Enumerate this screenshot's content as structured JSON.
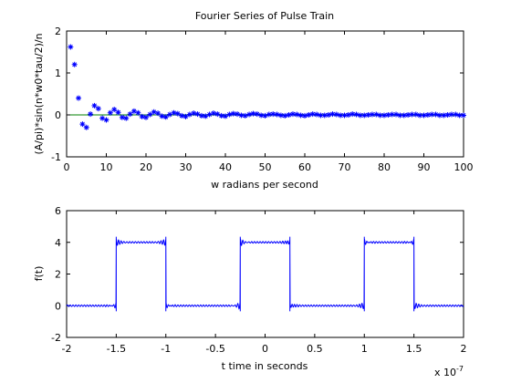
{
  "figure": {
    "background": "#ffffff",
    "axes_color": "#000000",
    "series_color": "#0000ff",
    "zero_line_color": "#008000"
  },
  "chart_data": [
    {
      "type": "scatter",
      "title": "Fourier Series of Pulse Train",
      "xlabel": "w radians per second",
      "ylabel": "(A/pi)*sin(n*w0*tau/2)/n",
      "xlim": [
        0,
        100
      ],
      "ylim": [
        -1,
        2
      ],
      "xticks": [
        "0",
        "10",
        "20",
        "30",
        "40",
        "50",
        "60",
        "70",
        "80",
        "90",
        "100"
      ],
      "yticks": [
        "-1",
        "0",
        "1",
        "2"
      ],
      "grid": false,
      "marker": "asterisk",
      "series": [
        {
          "x": [
            1,
            2,
            3,
            4,
            5,
            6,
            7,
            8,
            9,
            10,
            11,
            12,
            13,
            14,
            15,
            16,
            17,
            18,
            19,
            20,
            21,
            22,
            23,
            24,
            25,
            26,
            27,
            28,
            29,
            30,
            31,
            32,
            33,
            34,
            35,
            36,
            37,
            38,
            39,
            40,
            41,
            42,
            43,
            44,
            45,
            46,
            47,
            48,
            49,
            50,
            51,
            52,
            53,
            54,
            55,
            56,
            57,
            58,
            59,
            60,
            61,
            62,
            63,
            64,
            65,
            66,
            67,
            68,
            69,
            70,
            71,
            72,
            73,
            74,
            75,
            76,
            77,
            78,
            79,
            80,
            81,
            82,
            83,
            84,
            85,
            86,
            87,
            88,
            89,
            90,
            91,
            92,
            93,
            94,
            95,
            96,
            97,
            98,
            99,
            100
          ],
          "y": [
            1.62,
            1.2,
            0.4,
            -0.22,
            -0.3,
            0.02,
            0.22,
            0.15,
            -0.08,
            -0.12,
            0.05,
            0.13,
            0.06,
            -0.06,
            -0.08,
            0.02,
            0.09,
            0.05,
            -0.04,
            -0.06,
            0.01,
            0.07,
            0.04,
            -0.03,
            -0.05,
            0.01,
            0.05,
            0.03,
            -0.02,
            -0.04,
            0.01,
            0.04,
            0.02,
            -0.02,
            -0.03,
            0.01,
            0.04,
            0.02,
            -0.02,
            -0.03,
            0.01,
            0.03,
            0.02,
            -0.01,
            -0.02,
            0.01,
            0.03,
            0.02,
            -0.01,
            -0.02,
            0.01,
            0.02,
            0.01,
            -0.01,
            -0.02,
            0.0,
            0.02,
            0.01,
            -0.01,
            -0.02,
            0.0,
            0.02,
            0.01,
            -0.01,
            -0.01,
            0.0,
            0.02,
            0.01,
            -0.01,
            -0.01,
            0.0,
            0.02,
            0.01,
            -0.01,
            -0.01,
            0.0,
            0.01,
            0.01,
            -0.01,
            -0.01,
            0.0,
            0.01,
            0.01,
            -0.01,
            -0.01,
            0.0,
            0.01,
            0.01,
            -0.01,
            -0.01,
            0.0,
            0.01,
            0.01,
            -0.01,
            -0.01,
            0.0,
            0.01,
            0.01,
            -0.01,
            -0.01
          ]
        }
      ],
      "reference_line_y": 0
    },
    {
      "type": "line",
      "title": "",
      "xlabel": "t time in seconds",
      "ylabel": "f(t)",
      "x_multiplier": "x 10",
      "x_multiplier_exponent": "-7",
      "xlim": [
        -2,
        2
      ],
      "ylim": [
        -2,
        6
      ],
      "xticks": [
        "-2",
        "-1.5",
        "-1",
        "-0.5",
        "0",
        "0.5",
        "1",
        "1.5",
        "2"
      ],
      "yticks": [
        "-2",
        "0",
        "2",
        "4",
        "6"
      ],
      "grid": false,
      "series": [
        {
          "shape": "pulse train with ripple at edges",
          "low": 0,
          "high": 4,
          "pulses": [
            [
              -1.5,
              -1.0
            ],
            [
              -0.25,
              0.25
            ],
            [
              1.0,
              1.5
            ]
          ],
          "overshoot": 0.35,
          "x_units_scale": "1e-7"
        }
      ]
    }
  ]
}
